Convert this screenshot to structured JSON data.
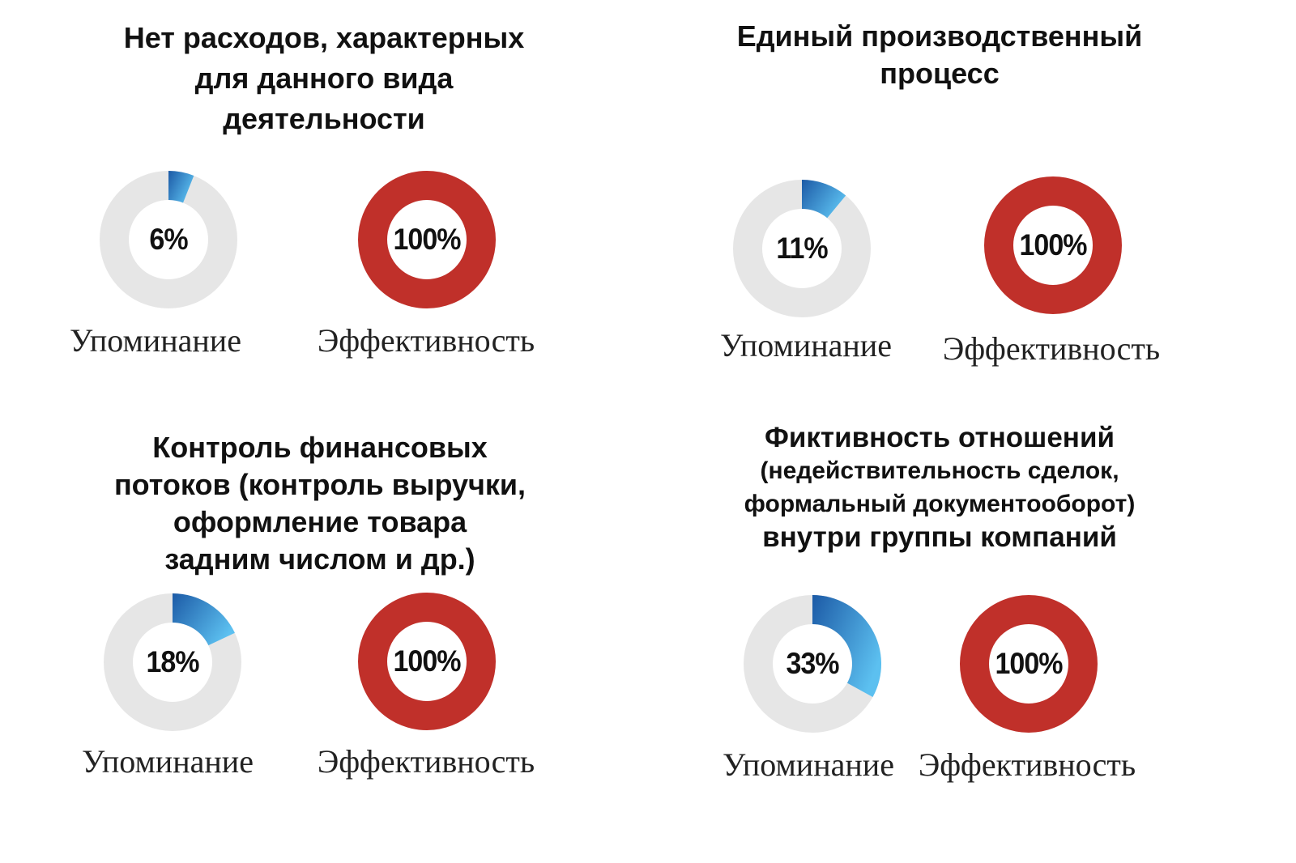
{
  "chart_data": [
    {
      "type": "donut",
      "title_lines": [
        "Нет расходов, характерных",
        "для данного вида",
        "деятельности"
      ],
      "charts": [
        {
          "label": "Упоминание",
          "value": 6,
          "value_label": "6%",
          "color": "#e6e6e6",
          "fill": "blue-gradient"
        },
        {
          "label": "Эффективность",
          "value": 100,
          "value_label": "100%",
          "color": "#c0302a"
        }
      ]
    },
    {
      "type": "donut",
      "title_lines": [
        "Единый производственный",
        "процесс"
      ],
      "charts": [
        {
          "label": "Упоминание",
          "value": 11,
          "value_label": "11%",
          "color": "#e6e6e6",
          "fill": "blue-gradient"
        },
        {
          "label": "Эффективность",
          "value": 100,
          "value_label": "100%",
          "color": "#c0302a"
        }
      ]
    },
    {
      "type": "donut",
      "title_lines": [
        "Контроль финансовых",
        "потоков (контроль выручки,",
        "оформление  товара",
        "задним числом и др.)"
      ],
      "charts": [
        {
          "label": "Упоминание",
          "value": 18,
          "value_label": "18%",
          "color": "#e6e6e6",
          "fill": "blue-gradient"
        },
        {
          "label": "Эффективность",
          "value": 100,
          "value_label": "100%",
          "color": "#c0302a"
        }
      ]
    },
    {
      "type": "donut",
      "title_lines": [
        "Фиктивность отношений",
        "(недействительность сделок,",
        "формальный документооборот)",
        "внутри группы компаний"
      ],
      "charts": [
        {
          "label": "Упоминание",
          "value": 33,
          "value_label": "33%",
          "color": "#e6e6e6",
          "fill": "blue-gradient"
        },
        {
          "label": "Эффективность",
          "value": 100,
          "value_label": "100%",
          "color": "#c0302a"
        }
      ]
    }
  ],
  "colors": {
    "track": "#e6e6e6",
    "blue_dark": "#1c5aa6",
    "blue_light": "#5cc0f0",
    "red": "#c0302a"
  }
}
